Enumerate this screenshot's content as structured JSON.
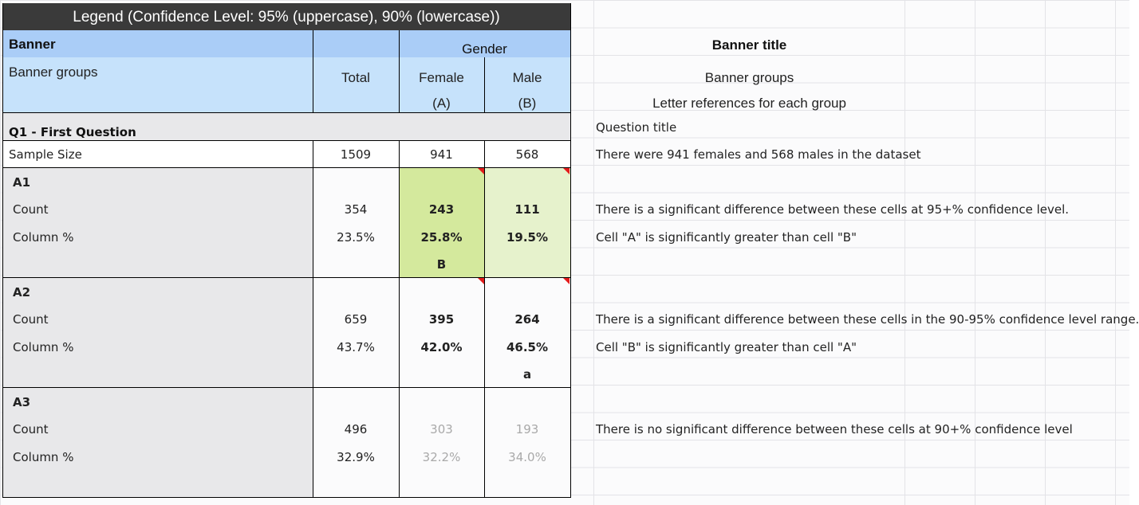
{
  "legend_title": "Legend (Confidence Level: 95% (uppercase), 90% (lowercase))",
  "banner_label": "Banner",
  "banner_groups_label": "Banner groups",
  "banner_heading": "Gender",
  "columns": [
    {
      "label": "Total",
      "letter": ""
    },
    {
      "label": "Female",
      "letter": "(A)"
    },
    {
      "label": "Male",
      "letter": "(B)"
    }
  ],
  "question_title": "Q1 - First Question",
  "sample_size": {
    "label": "Sample Size",
    "values": [
      "1509",
      "941",
      "568"
    ]
  },
  "answers": [
    {
      "name": "A1",
      "count_label": "Count",
      "count": [
        "354",
        "243",
        "111"
      ],
      "pct_label": "Column %",
      "pct": [
        "23.5%",
        "25.8%",
        "19.5%"
      ],
      "sig": [
        "",
        "B",
        ""
      ]
    },
    {
      "name": "A2",
      "count_label": "Count",
      "count": [
        "659",
        "395",
        "264"
      ],
      "pct_label": "Column %",
      "pct": [
        "43.7%",
        "42.0%",
        "46.5%"
      ],
      "sig": [
        "",
        "",
        "a"
      ]
    },
    {
      "name": "A3",
      "count_label": "Count",
      "count": [
        "496",
        "303",
        "193"
      ],
      "pct_label": "Column %",
      "pct": [
        "32.9%",
        "32.2%",
        "34.0%"
      ],
      "sig": [
        "",
        "",
        ""
      ]
    }
  ],
  "notes": {
    "banner_title": "Banner title",
    "banner_groups": "Banner groups",
    "letter_refs": "Letter references for each group",
    "question_title": "Question title",
    "sample": "There were 941 females and 568 males in the dataset",
    "sig95": "There is a significant difference between these cells at 95+% confidence level.",
    "a_gt_b": "Cell \"A\" is significantly greater than cell \"B\"",
    "sig90": "There is a significant difference between these cells in the 90-95% confidence level range.",
    "b_gt_a": "Cell \"B\" is significantly greater than cell \"A\"",
    "nosig": "There is no significant difference between these cells at 90+% confidence level"
  },
  "colors": {
    "legend_bg": "#3a3a3a",
    "banner_bg": "#aacdf7",
    "groups_bg": "#c6e2fb",
    "question_bg": "#e8e8ea",
    "sig95_bg": "#d4e99d",
    "sig90_bg": "#e6f2cc",
    "flag": "#e31b1b"
  }
}
